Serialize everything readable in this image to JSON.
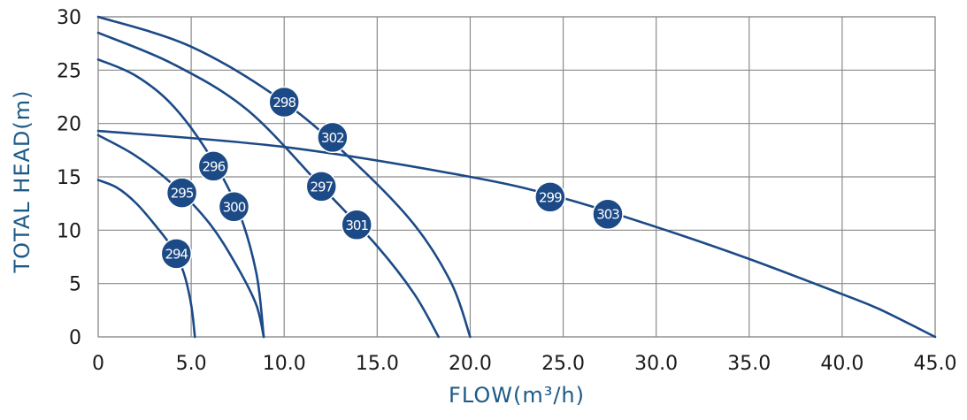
{
  "chart_data": {
    "type": "line",
    "xlabel": "FLOW(m³/h)",
    "ylabel": "TOTAL HEAD(m)",
    "xlim": [
      0,
      45
    ],
    "ylim": [
      0,
      30
    ],
    "x_ticks": [
      "0",
      "5.0",
      "10.0",
      "15.0",
      "20.0",
      "25.0",
      "30.0",
      "35.0",
      "40.0",
      "45.0"
    ],
    "y_ticks": [
      "0",
      "5",
      "10",
      "15",
      "20",
      "25",
      "30"
    ],
    "grid": true,
    "curve_color": "#1c4a86",
    "series": [
      {
        "name": "294",
        "label_at": [
          4.2,
          7.8
        ],
        "points": [
          [
            0,
            14.7
          ],
          [
            1,
            14.0
          ],
          [
            2,
            12.6
          ],
          [
            3,
            10.6
          ],
          [
            4,
            8.3
          ],
          [
            4.6,
            6.0
          ],
          [
            5.0,
            3.0
          ],
          [
            5.2,
            0
          ]
        ]
      },
      {
        "name": "295",
        "label_at": [
          4.5,
          13.5
        ],
        "points": [
          [
            0,
            18.9
          ],
          [
            2,
            17.0
          ],
          [
            4,
            14.3
          ],
          [
            6,
            10.6
          ],
          [
            7.5,
            6.5
          ],
          [
            8.5,
            3.0
          ],
          [
            8.9,
            0
          ]
        ]
      },
      {
        "name": "296",
        "label_at": [
          6.2,
          16.0
        ],
        "points": [
          [
            0,
            26.0
          ],
          [
            2,
            24.5
          ],
          [
            4,
            21.7
          ],
          [
            6,
            17.0
          ],
          [
            7.5,
            12.0
          ],
          [
            8.5,
            6.0
          ],
          [
            8.9,
            0
          ]
        ]
      },
      {
        "name": "297",
        "label_at": [
          12.0,
          14.1
        ],
        "points": [
          [
            0,
            28.5
          ],
          [
            4,
            25.6
          ],
          [
            8,
            21.3
          ],
          [
            12,
            14.1
          ],
          [
            15,
            8.5
          ],
          [
            17,
            4.0
          ],
          [
            18.3,
            0
          ]
        ]
      },
      {
        "name": "298",
        "label_at": [
          10.0,
          22.0
        ],
        "points": [
          [
            0,
            30.0
          ],
          [
            5,
            27.2
          ],
          [
            10,
            22.0
          ],
          [
            14,
            16.0
          ],
          [
            17,
            10.5
          ],
          [
            19,
            5.0
          ],
          [
            20.0,
            0
          ]
        ]
      },
      {
        "name": "299",
        "label_at": [
          24.3,
          13.1
        ],
        "points": [
          [
            0,
            19.3
          ],
          [
            10,
            17.8
          ],
          [
            20,
            15.0
          ],
          [
            25,
            13.0
          ],
          [
            30,
            10.3
          ],
          [
            35,
            7.3
          ],
          [
            40,
            4.0
          ],
          [
            42,
            2.6
          ],
          [
            45,
            0
          ]
        ]
      },
      {
        "name": "300",
        "label_at": [
          7.3,
          12.2
        ],
        "points": []
      },
      {
        "name": "301",
        "label_at": [
          13.9,
          10.5
        ],
        "points": []
      },
      {
        "name": "302",
        "label_at": [
          12.6,
          18.7
        ],
        "points": []
      },
      {
        "name": "303",
        "label_at": [
          27.4,
          11.5
        ],
        "points": []
      }
    ]
  }
}
